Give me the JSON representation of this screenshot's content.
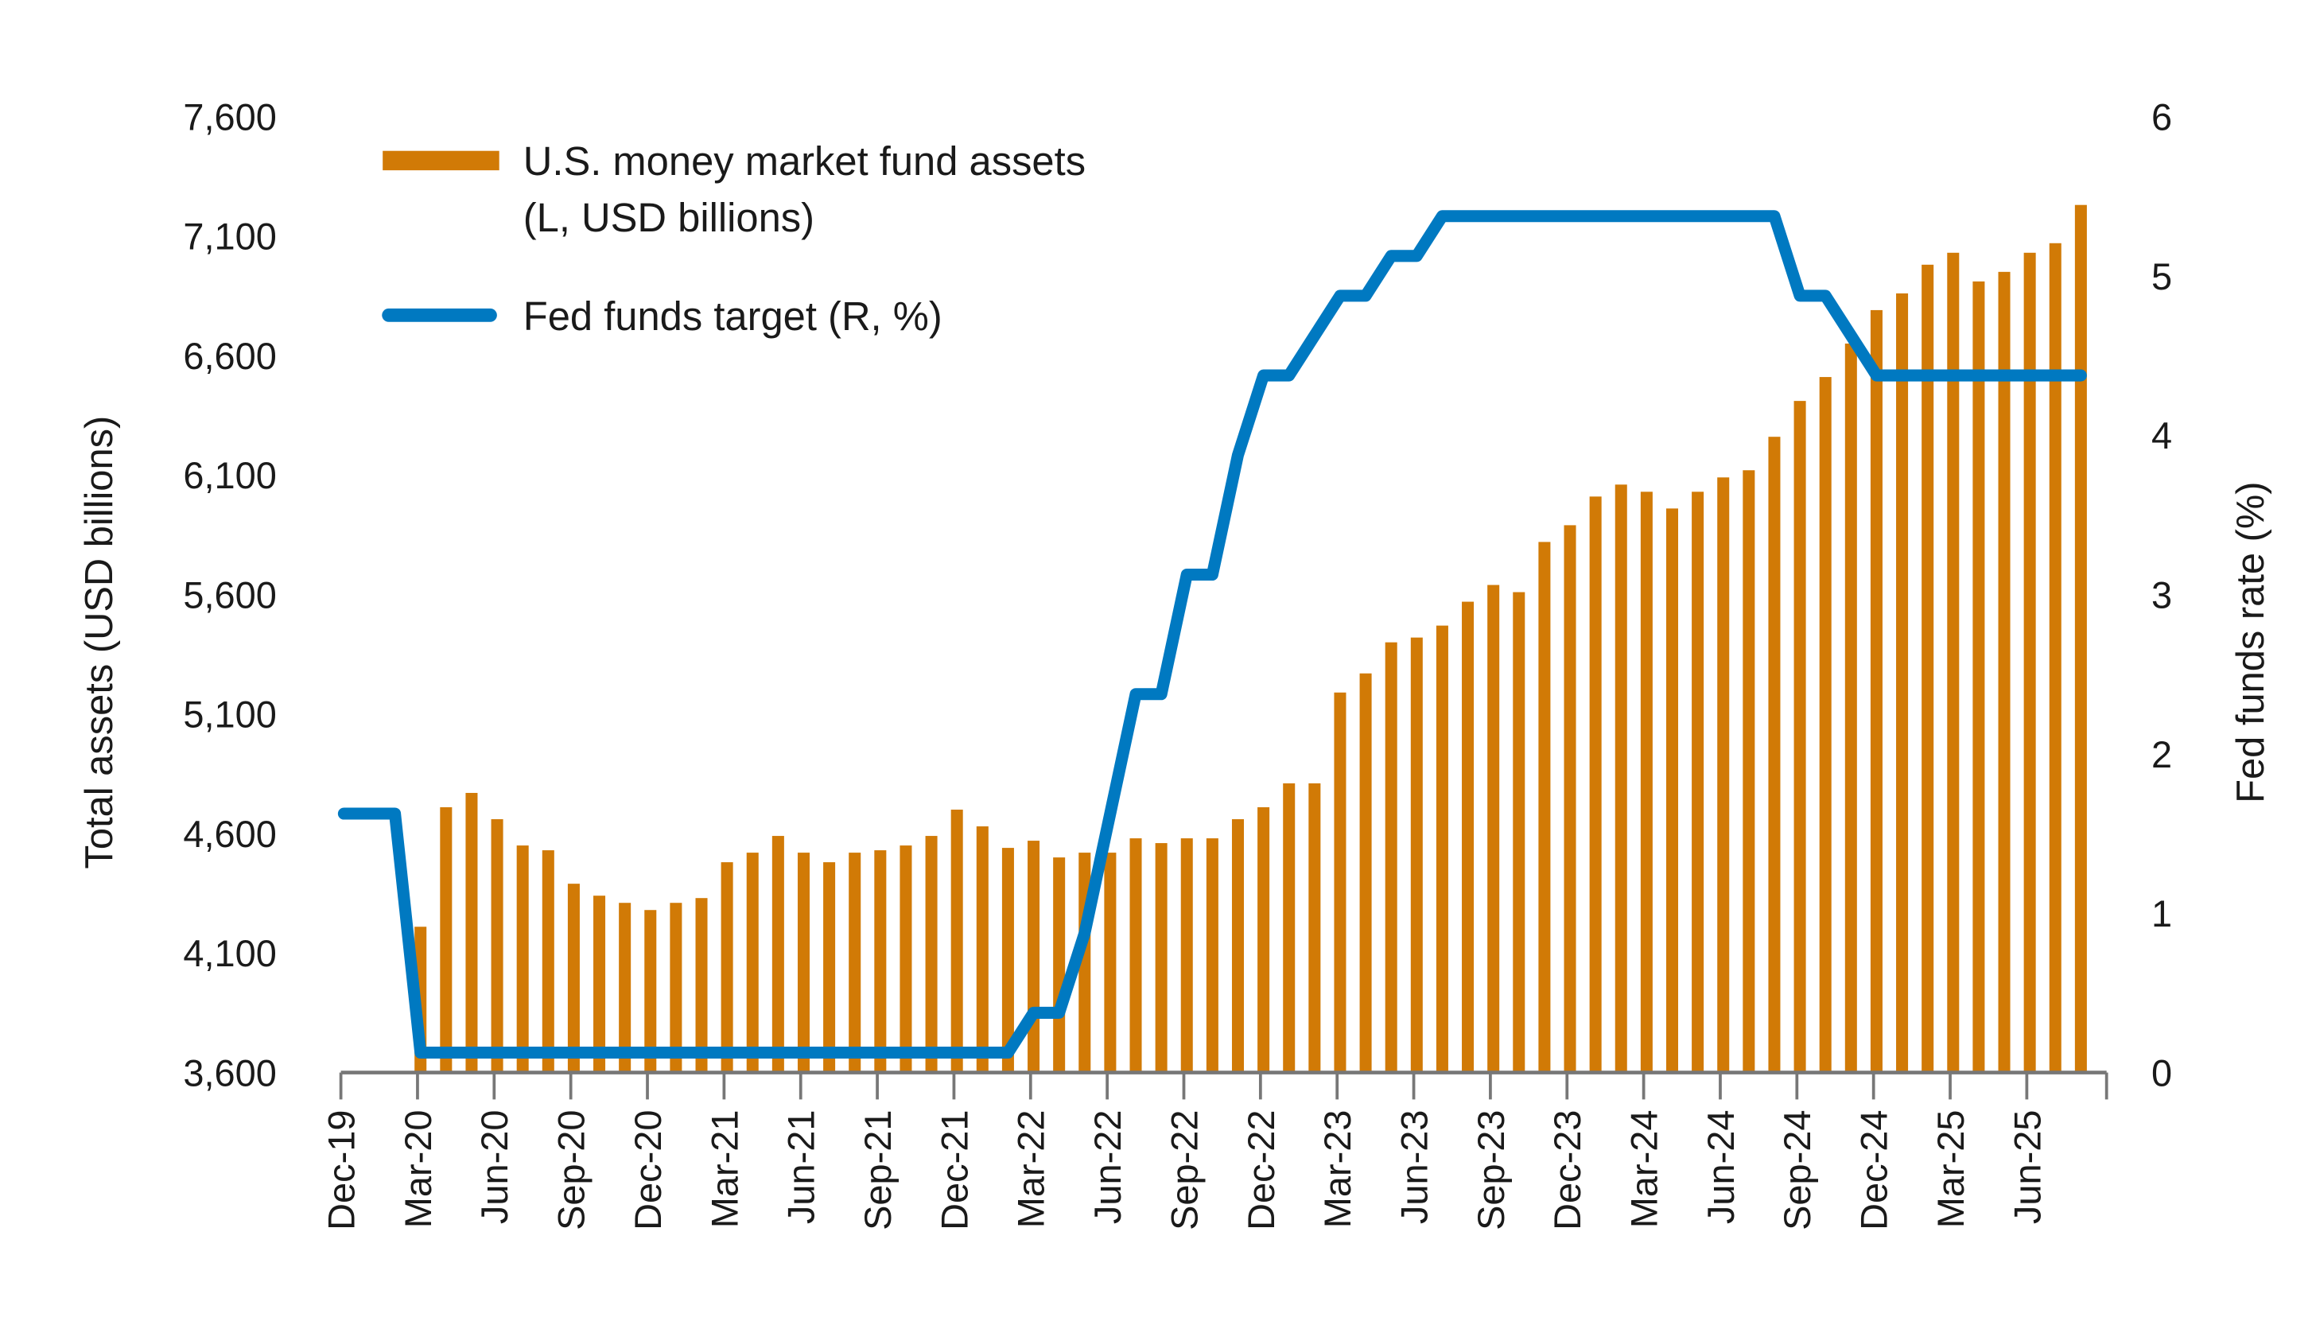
{
  "chart_data": {
    "type": "bar+line",
    "legend_placement": "top-left",
    "colors": {
      "bars": "#D17A06",
      "line": "#0079C1",
      "axis": "#777777"
    },
    "y_left": {
      "label": "Total assets (USD billions)",
      "range": [
        3600,
        7600
      ],
      "ticks": [
        "3,600",
        "4,100",
        "4,600",
        "5,100",
        "5,600",
        "6,100",
        "6,600",
        "7,100",
        "7,600"
      ]
    },
    "y_right": {
      "label": "Fed funds rate (%)",
      "range": [
        0,
        6
      ],
      "ticks": [
        "0",
        "1",
        "2",
        "3",
        "4",
        "5",
        "6"
      ]
    },
    "x_tick_labels": [
      "Dec-19",
      "Mar-20",
      "Jun-20",
      "Sep-20",
      "Dec-20",
      "Mar-21",
      "Jun-21",
      "Sep-21",
      "Dec-21",
      "Mar-22",
      "Jun-22",
      "Sep-22",
      "Dec-22",
      "Mar-23",
      "Jun-23",
      "Sep-23",
      "Dec-23",
      "Mar-24",
      "Jun-24",
      "Sep-24",
      "Dec-24",
      "Mar-25",
      "Jun-25"
    ],
    "series": [
      {
        "name": "U.S. money market fund assets (L, USD billions)",
        "legend_lines": [
          "U.S. money market fund assets",
          "(L, USD billions)"
        ],
        "type": "bar",
        "axis": "left",
        "start": "Mar-20",
        "frequency": "monthly",
        "values": [
          4210,
          4710,
          4770,
          4660,
          4550,
          4530,
          4390,
          4340,
          4310,
          4280,
          4310,
          4330,
          4480,
          4520,
          4590,
          4520,
          4480,
          4520,
          4530,
          4550,
          4590,
          4700,
          4630,
          4540,
          4570,
          4500,
          4520,
          4520,
          4580,
          4560,
          4580,
          4580,
          4660,
          4710,
          4810,
          4810,
          5190,
          5270,
          5400,
          5420,
          5470,
          5570,
          5640,
          5610,
          5820,
          5890,
          6010,
          6060,
          6030,
          5960,
          6030,
          6090,
          6120,
          6260,
          6410,
          6510,
          6650,
          6790,
          6860,
          6980,
          7030,
          6910,
          6950,
          7030,
          7070,
          7230
        ]
      },
      {
        "name": "Fed funds target (R, %)",
        "type": "line",
        "axis": "right",
        "start": "Dec-19",
        "frequency": "monthly",
        "values": [
          1.625,
          1.625,
          1.625,
          0.125,
          0.125,
          0.125,
          0.125,
          0.125,
          0.125,
          0.125,
          0.125,
          0.125,
          0.125,
          0.125,
          0.125,
          0.125,
          0.125,
          0.125,
          0.125,
          0.125,
          0.125,
          0.125,
          0.125,
          0.125,
          0.125,
          0.125,
          0.125,
          0.375,
          0.375,
          0.875,
          1.625,
          2.375,
          2.375,
          3.125,
          3.125,
          3.875,
          4.375,
          4.375,
          4.625,
          4.875,
          4.875,
          5.125,
          5.125,
          5.375,
          5.375,
          5.375,
          5.375,
          5.375,
          5.375,
          5.375,
          5.375,
          5.375,
          5.375,
          5.375,
          5.375,
          5.375,
          5.375,
          4.875,
          4.875,
          4.625,
          4.375,
          4.375,
          4.375,
          4.375,
          4.375,
          4.375,
          4.375,
          4.375,
          4.375
        ]
      }
    ]
  }
}
